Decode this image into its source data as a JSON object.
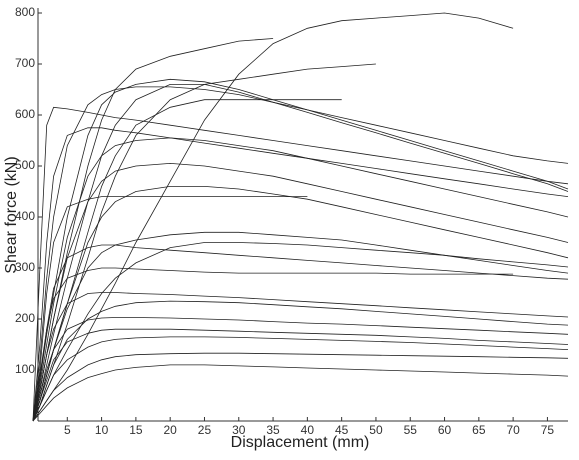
{
  "chart_data": {
    "type": "line",
    "x_label": "Displacement (mm)",
    "y_label": "Shear force (kN)",
    "xlim": [
      0,
      78
    ],
    "ylim": [
      0,
      800
    ],
    "xticks": [
      5,
      10,
      15,
      20,
      25,
      30,
      35,
      40,
      45,
      50,
      55,
      60,
      65,
      70,
      75
    ],
    "yticks": [
      100,
      200,
      300,
      400,
      500,
      600,
      700,
      800
    ],
    "x": [
      0,
      1,
      2,
      3,
      5,
      8,
      10,
      12,
      15,
      20,
      25,
      30,
      35,
      40,
      45,
      50,
      55,
      60,
      65,
      70,
      75,
      78
    ],
    "series": [
      {
        "color": "#222",
        "values": [
          0,
          300,
          580,
          615,
          612,
          605,
          600,
          595,
          590,
          580,
          570,
          560,
          550,
          540,
          530,
          520,
          510,
          500,
          490,
          480,
          470,
          465
        ]
      },
      {
        "color": "#222",
        "values": [
          0,
          20,
          40,
          60,
          100,
          170,
          220,
          270,
          350,
          470,
          590,
          680,
          740,
          770,
          785,
          790,
          795,
          800,
          790,
          770,
          null,
          null
        ]
      },
      {
        "color": "#222",
        "values": [
          0,
          60,
          130,
          200,
          330,
          500,
          590,
          650,
          690,
          715,
          730,
          745,
          750,
          null,
          null,
          null,
          null,
          null,
          null,
          null,
          null,
          null
        ]
      },
      {
        "color": "#222",
        "values": [
          0,
          80,
          170,
          250,
          400,
          560,
          620,
          645,
          660,
          670,
          665,
          650,
          630,
          610,
          590,
          570,
          550,
          530,
          510,
          490,
          470,
          455
        ]
      },
      {
        "color": "#222",
        "values": [
          0,
          50,
          110,
          170,
          280,
          430,
          520,
          580,
          630,
          660,
          660,
          645,
          625,
          605,
          585,
          565,
          545,
          525,
          505,
          485,
          465,
          450
        ]
      },
      {
        "color": "#222",
        "values": [
          0,
          30,
          70,
          110,
          190,
          320,
          410,
          480,
          560,
          630,
          660,
          670,
          680,
          690,
          695,
          700,
          null,
          null,
          null,
          null,
          null,
          null
        ]
      },
      {
        "color": "#222",
        "values": [
          0,
          40,
          90,
          140,
          230,
          370,
          460,
          520,
          580,
          615,
          630,
          630,
          630,
          630,
          630,
          null,
          null,
          null,
          null,
          null,
          null,
          null
        ]
      },
      {
        "color": "#222",
        "values": [
          0,
          70,
          150,
          230,
          360,
          480,
          520,
          540,
          550,
          555,
          550,
          540,
          530,
          515,
          500,
          485,
          470,
          455,
          440,
          425,
          410,
          400
        ]
      },
      {
        "color": "#222",
        "values": [
          0,
          60,
          130,
          200,
          320,
          430,
          470,
          490,
          500,
          505,
          500,
          490,
          480,
          465,
          450,
          435,
          420,
          405,
          390,
          375,
          360,
          350
        ]
      },
      {
        "color": "#222",
        "values": [
          0,
          40,
          90,
          140,
          230,
          350,
          400,
          430,
          450,
          460,
          460,
          455,
          445,
          435,
          420,
          405,
          390,
          375,
          360,
          345,
          330,
          320
        ]
      },
      {
        "color": "#222",
        "values": [
          0,
          100,
          250,
          350,
          420,
          435,
          440,
          440,
          440,
          440,
          440,
          440,
          440,
          440,
          null,
          null,
          null,
          null,
          null,
          null,
          null,
          null
        ]
      },
      {
        "color": "#222",
        "values": [
          0,
          40,
          90,
          140,
          220,
          300,
          330,
          345,
          355,
          365,
          370,
          370,
          365,
          360,
          355,
          345,
          335,
          325,
          315,
          305,
          295,
          290
        ]
      },
      {
        "color": "#222",
        "values": [
          0,
          80,
          180,
          260,
          320,
          340,
          345,
          345,
          340,
          335,
          330,
          325,
          320,
          315,
          310,
          305,
          300,
          295,
          290,
          285,
          280,
          278
        ]
      },
      {
        "color": "#222",
        "values": [
          0,
          90,
          180,
          240,
          280,
          295,
          300,
          300,
          298,
          295,
          292,
          290,
          290,
          290,
          290,
          290,
          288,
          288,
          288,
          288,
          null,
          null
        ]
      },
      {
        "color": "#222",
        "values": [
          0,
          60,
          130,
          180,
          230,
          250,
          252,
          252,
          250,
          248,
          245,
          242,
          238,
          234,
          230,
          226,
          222,
          218,
          214,
          210,
          206,
          204
        ]
      },
      {
        "color": "#222",
        "values": [
          0,
          30,
          70,
          110,
          160,
          200,
          215,
          225,
          232,
          235,
          234,
          232,
          228,
          224,
          220,
          215,
          210,
          205,
          200,
          195,
          190,
          188
        ]
      },
      {
        "color": "#222",
        "values": [
          0,
          50,
          100,
          140,
          180,
          198,
          202,
          203,
          203,
          202,
          200,
          198,
          195,
          192,
          190,
          187,
          184,
          181,
          178,
          175,
          172,
          170
        ]
      },
      {
        "color": "#222",
        "values": [
          0,
          40,
          80,
          120,
          155,
          172,
          178,
          180,
          180,
          180,
          178,
          176,
          174,
          172,
          170,
          168,
          165,
          162,
          158,
          155,
          152,
          150
        ]
      },
      {
        "color": "#222",
        "values": [
          0,
          30,
          60,
          90,
          120,
          145,
          155,
          160,
          163,
          165,
          165,
          164,
          162,
          160,
          158,
          156,
          154,
          151,
          148,
          145,
          142,
          140
        ]
      },
      {
        "color": "#222",
        "values": [
          0,
          20,
          40,
          60,
          85,
          110,
          120,
          126,
          130,
          132,
          133,
          133,
          132,
          131,
          130,
          129,
          128,
          127,
          126,
          125,
          124,
          123
        ]
      },
      {
        "color": "#222",
        "values": [
          0,
          15,
          30,
          45,
          65,
          85,
          93,
          100,
          105,
          110,
          110,
          108,
          106,
          104,
          102,
          100,
          98,
          96,
          94,
          92,
          90,
          88
        ]
      },
      {
        "color": "#222",
        "values": [
          0,
          150,
          350,
          480,
          560,
          575,
          575,
          570,
          565,
          555,
          545,
          535,
          525,
          515,
          505,
          495,
          485,
          475,
          465,
          455,
          445,
          440
        ]
      },
      {
        "color": "#222",
        "values": [
          0,
          120,
          280,
          400,
          540,
          620,
          640,
          650,
          655,
          655,
          650,
          640,
          625,
          610,
          595,
          580,
          565,
          550,
          535,
          520,
          510,
          505
        ]
      },
      {
        "color": "#222",
        "values": [
          0,
          30,
          60,
          90,
          140,
          210,
          250,
          280,
          310,
          340,
          350,
          350,
          348,
          345,
          340,
          335,
          330,
          325,
          318,
          312,
          306,
          302
        ]
      }
    ]
  }
}
